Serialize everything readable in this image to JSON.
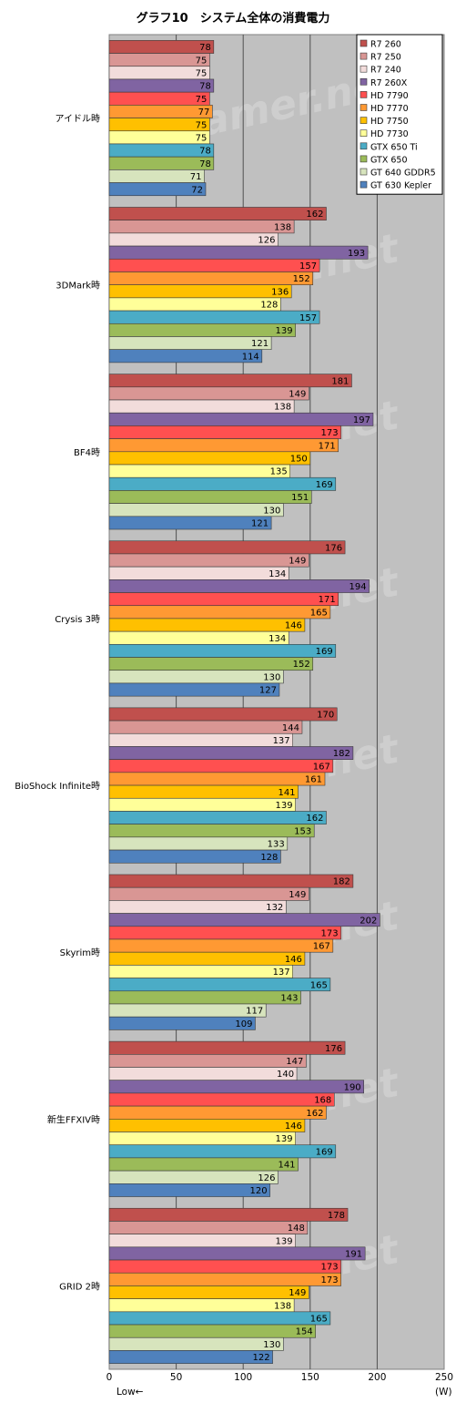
{
  "chart_data": {
    "type": "bar",
    "orientation": "horizontal",
    "title": "グラフ10　システム全体の消費電力",
    "xlabel_left": "Low←",
    "unit_label": "(W)",
    "xlim": [
      0,
      250
    ],
    "xticks": [
      0,
      50,
      100,
      150,
      200,
      250
    ],
    "grid": true,
    "legend_position": "top-right",
    "watermark": "4Gamer.net",
    "categories": [
      "アイドル時",
      "3DMark時",
      "BF4時",
      "Crysis 3時",
      "BioShock Infinite時",
      "Skyrim時",
      "新生FFXIV時",
      "GRID 2時"
    ],
    "series": [
      {
        "name": "R7 260",
        "color": "#c0504d",
        "values": [
          78,
          162,
          181,
          176,
          170,
          182,
          176,
          178
        ]
      },
      {
        "name": "R7 250",
        "color": "#d99694",
        "values": [
          75,
          138,
          149,
          149,
          144,
          149,
          147,
          148
        ]
      },
      {
        "name": "R7 240",
        "color": "#f2dcdb",
        "values": [
          75,
          126,
          138,
          134,
          137,
          132,
          140,
          139
        ]
      },
      {
        "name": "R7 260X",
        "color": "#8064a2",
        "values": [
          78,
          193,
          197,
          194,
          182,
          202,
          190,
          191
        ]
      },
      {
        "name": "HD 7790",
        "color": "#ff5050",
        "values": [
          75,
          157,
          173,
          171,
          167,
          173,
          168,
          173
        ]
      },
      {
        "name": "HD 7770",
        "color": "#ff9933",
        "values": [
          77,
          152,
          171,
          165,
          161,
          167,
          162,
          173
        ]
      },
      {
        "name": "HD 7750",
        "color": "#ffc000",
        "values": [
          75,
          136,
          150,
          146,
          141,
          146,
          146,
          149
        ]
      },
      {
        "name": "HD 7730",
        "color": "#ffff99",
        "values": [
          75,
          128,
          135,
          134,
          139,
          137,
          139,
          138
        ]
      },
      {
        "name": "GTX 650 Ti",
        "color": "#4bacc6",
        "values": [
          78,
          157,
          169,
          169,
          162,
          165,
          169,
          165
        ]
      },
      {
        "name": "GTX 650",
        "color": "#9bbb59",
        "values": [
          78,
          139,
          151,
          152,
          153,
          143,
          141,
          154
        ]
      },
      {
        "name": "GT 640 GDDR5",
        "color": "#d7e4bd",
        "values": [
          71,
          121,
          130,
          130,
          133,
          117,
          126,
          130
        ]
      },
      {
        "name": "GT 630 Kepler",
        "color": "#4f81bd",
        "values": [
          72,
          114,
          121,
          127,
          128,
          109,
          120,
          122
        ]
      }
    ]
  }
}
